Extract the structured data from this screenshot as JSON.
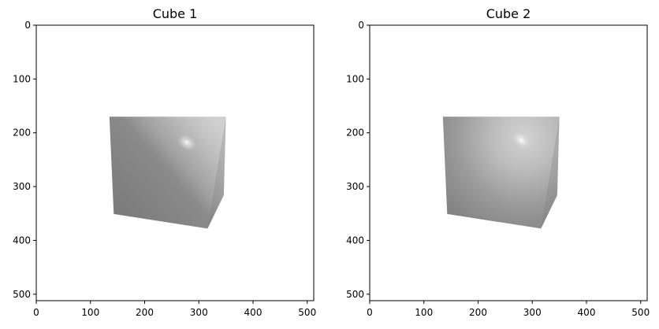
{
  "chart_data": [
    {
      "type": "image",
      "title": "Cube 1",
      "xlim": [
        0,
        512
      ],
      "ylim": [
        512,
        0
      ],
      "xticks": [
        0,
        100,
        200,
        300,
        400,
        500
      ],
      "yticks": [
        0,
        100,
        200,
        300,
        400,
        500
      ],
      "image_content": {
        "description_color": "#808080",
        "shading": "diagonal",
        "highlight": {
          "x": 278,
          "y": 218
        },
        "cube_vertices_data_units": {
          "top_left": [
            135,
            170
          ],
          "top_right": [
            350,
            170
          ],
          "bottom_left_front": [
            143,
            351
          ],
          "bottom_right_front": [
            316,
            378
          ],
          "right_back_bottom": [
            346,
            316
          ]
        }
      }
    },
    {
      "type": "image",
      "title": "Cube 2",
      "xlim": [
        0,
        512
      ],
      "ylim": [
        512,
        0
      ],
      "xticks": [
        0,
        100,
        200,
        300,
        400,
        500
      ],
      "yticks": [
        0,
        100,
        200,
        300,
        400,
        500
      ],
      "image_content": {
        "description_color": "#808080",
        "shading": "radial",
        "highlight": {
          "x": 280,
          "y": 214
        },
        "cube_vertices_data_units": {
          "top_left": [
            135,
            170
          ],
          "top_right": [
            350,
            170
          ],
          "bottom_left_front": [
            143,
            351
          ],
          "bottom_right_front": [
            316,
            378
          ],
          "right_back_bottom": [
            346,
            316
          ]
        }
      }
    }
  ]
}
